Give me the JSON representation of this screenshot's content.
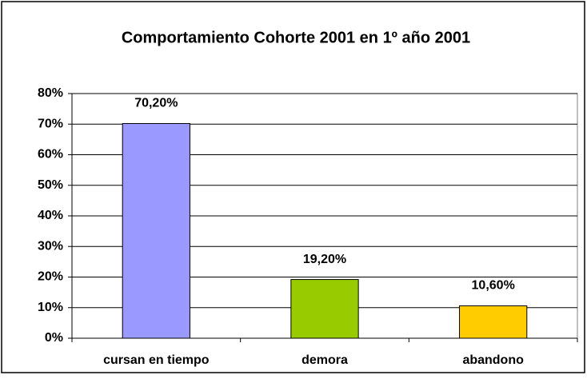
{
  "chart_data": {
    "type": "bar",
    "title": "Comportamiento Cohorte 2001 en 1º año 2001",
    "categories": [
      "cursan en tiempo",
      "demora",
      "abandono"
    ],
    "values": [
      70.2,
      19.2,
      10.6
    ],
    "value_labels": [
      "70,20%",
      "19,20%",
      "10,60%"
    ],
    "colors": [
      "#9999ff",
      "#99cc00",
      "#ffcc00"
    ],
    "ylim": [
      0,
      80
    ],
    "yticks": [
      {
        "value": 0,
        "label": "0%"
      },
      {
        "value": 10,
        "label": "10%"
      },
      {
        "value": 20,
        "label": "20%"
      },
      {
        "value": 30,
        "label": "30%"
      },
      {
        "value": 40,
        "label": "40%"
      },
      {
        "value": 50,
        "label": "50%"
      },
      {
        "value": 60,
        "label": "60%"
      },
      {
        "value": 70,
        "label": "70%"
      },
      {
        "value": 80,
        "label": "80%"
      }
    ],
    "grid": true
  }
}
